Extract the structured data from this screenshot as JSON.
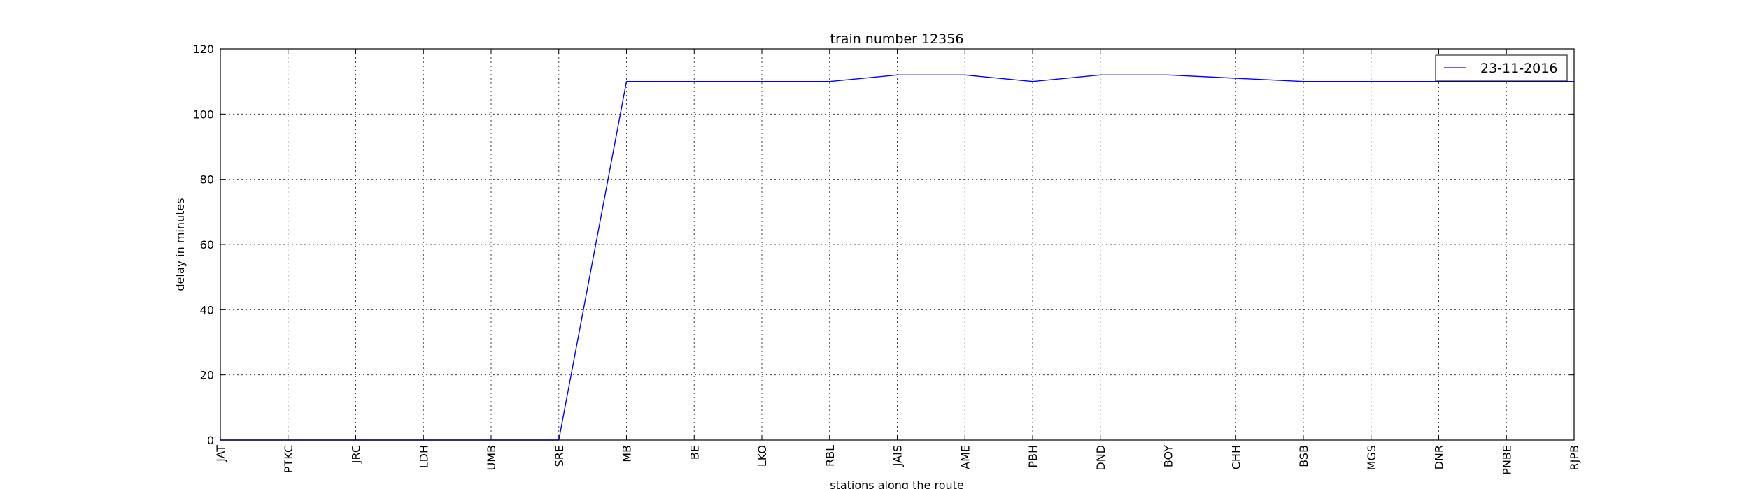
{
  "chart_data": {
    "type": "line",
    "title": "train number 12356",
    "xlabel": "stations along the route",
    "ylabel": "delay in minutes",
    "categories": [
      "JAT",
      "PTKC",
      "JRC",
      "LDH",
      "UMB",
      "SRE",
      "MB",
      "BE",
      "LKO",
      "RBL",
      "JAIS",
      "AME",
      "PBH",
      "DND",
      "BOY",
      "CHH",
      "BSB",
      "MGS",
      "DNR",
      "PNBE",
      "RJPB"
    ],
    "series": [
      {
        "name": "23-11-2016",
        "color": "#0000ff",
        "values": [
          0,
          0,
          0,
          0,
          0,
          0,
          110,
          110,
          110,
          110,
          112,
          112,
          110,
          112,
          112,
          111,
          110,
          110,
          110,
          110,
          110
        ]
      }
    ],
    "ylim": [
      0,
      120
    ],
    "yticks": [
      0,
      20,
      40,
      60,
      80,
      100,
      120
    ],
    "grid": true,
    "legend_position": "top-right"
  }
}
